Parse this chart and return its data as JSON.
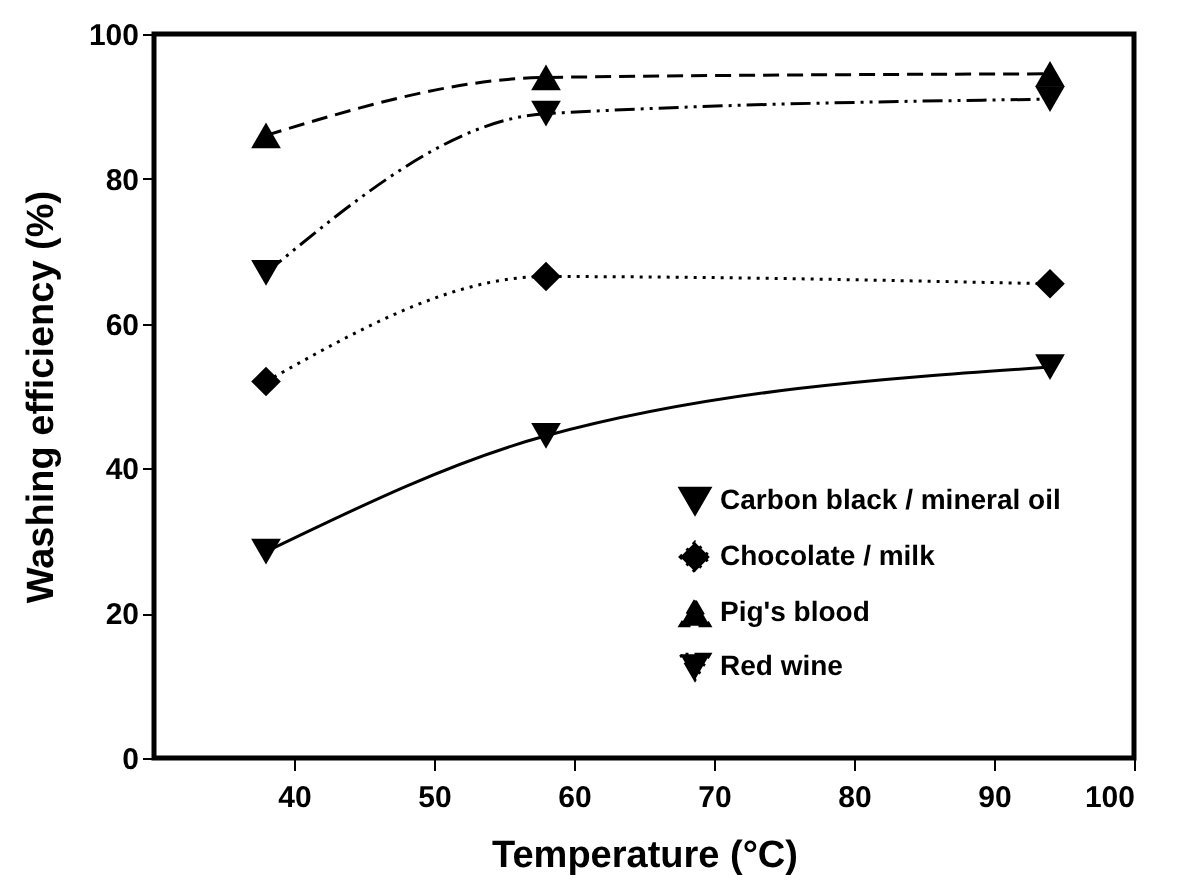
{
  "chart_data": {
    "type": "line",
    "xlabel": "Temperature (°C)",
    "ylabel": "Washing efficiency (%)",
    "x": [
      38,
      58,
      94
    ],
    "series": [
      {
        "name": "Carbon black / mineral oil",
        "color": "#000000",
        "marker": "triangle-down",
        "line_style": "solid",
        "values": [
          28.5,
          44.5,
          54
        ]
      },
      {
        "name": "Chocolate / milk",
        "color": "#000000",
        "marker": "diamond",
        "line_style": "dotted",
        "values": [
          52,
          66.5,
          65.5
        ]
      },
      {
        "name": "Pig's blood",
        "color": "#000000",
        "marker": "triangle",
        "line_style": "dashed",
        "values": [
          86,
          94,
          94.5
        ]
      },
      {
        "name": "Red wine",
        "color": "#000000",
        "marker": "triangle-down",
        "line_style": "dashdotdot",
        "values": [
          67,
          89,
          91
        ]
      }
    ],
    "xlim": [
      30,
      100
    ],
    "xticks": [
      40,
      50,
      60,
      70,
      80,
      90,
      100
    ],
    "ylim": [
      0,
      100
    ],
    "yticks": [
      0,
      20,
      40,
      60,
      80,
      100
    ],
    "grid": false,
    "legend": "bottom right"
  }
}
